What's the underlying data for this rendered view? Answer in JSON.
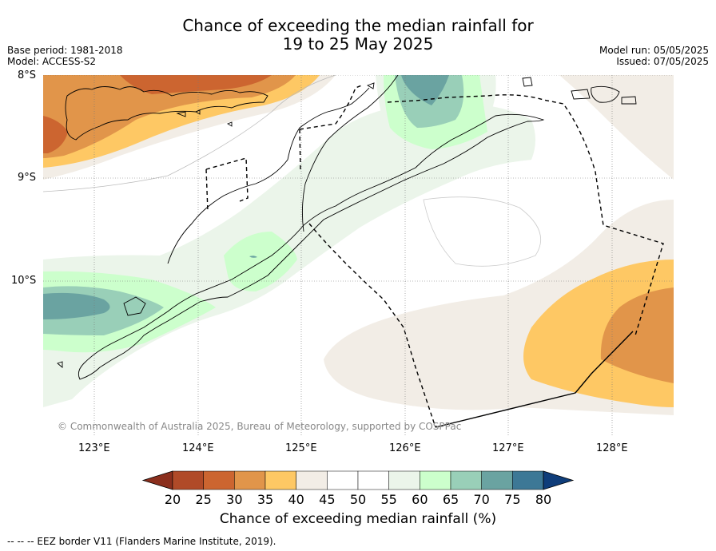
{
  "title_line1": "Chance of exceeding the median rainfall for",
  "title_line2": "19 to 25 May 2025",
  "meta_left": {
    "base_period": "Base period: 1981-2018",
    "model": "Model: ACCESS-S2"
  },
  "meta_right": {
    "model_run": "Model run: 05/05/2025",
    "issued": "Issued: 07/05/2025"
  },
  "lat_labels": [
    "8°S",
    "9°S",
    "10°S"
  ],
  "lon_labels": [
    "123°E",
    "124°E",
    "125°E",
    "126°E",
    "127°E",
    "128°E"
  ],
  "copyright": "© Commonwealth of Australia 2025, Bureau of Meteorology, supported by COSPPac",
  "colorbar": {
    "ticks": [
      "20",
      "25",
      "30",
      "35",
      "40",
      "45",
      "50",
      "55",
      "60",
      "65",
      "70",
      "75",
      "80"
    ],
    "colors": [
      "#b04a28",
      "#cc6530",
      "#e1954a",
      "#fec864",
      "#f2ede6",
      "#ffffff",
      "#ffffff",
      "#ebf5ea",
      "#ccffcc",
      "#99cfb8",
      "#6aa3a1",
      "#3d7896",
      "#1a4e86"
    ],
    "under_color": "#8b2f1d",
    "over_color": "#0f3d7a",
    "label": "Chance of exceeding median rainfall (%)"
  },
  "footnote": "--  --  -- EEZ border V11 (Flanders Marine Institute, 2019)."
}
